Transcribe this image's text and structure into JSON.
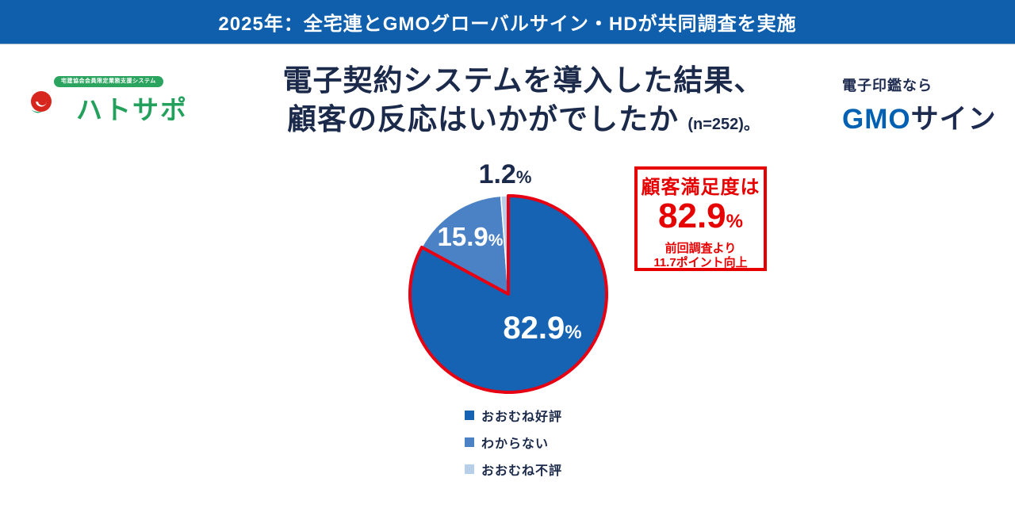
{
  "banner": {
    "text": "2025年：全宅連とGMOグローバルサイン・HDが共同調査を実施",
    "bg_color": "#0f5fad"
  },
  "logos": {
    "hatosapo": {
      "badge": "宅建協会会員限定業務支援システム",
      "name": "ハトサポ",
      "green": "#23a05c",
      "bird_red": "#d7261d"
    },
    "gmosign": {
      "tagline": "電子印鑑なら",
      "brand_blue_part": "GMO",
      "brand_navy_part": "サイン",
      "blue": "#0060b2",
      "navy": "#1e2b50"
    }
  },
  "title": {
    "line1": "電子契約システムを導入した結果、",
    "line2": "顧客の反応はいかがでしたか",
    "sample": "(n=252)。"
  },
  "percent_sign": "%",
  "chart_data": {
    "type": "pie",
    "title": "電子契約システムを導入した結果、顧客の反応はいかがでしたか",
    "sample_size": 252,
    "start_angle_deg": 0,
    "direction": "clockwise",
    "legend_position": "bottom",
    "slices": [
      {
        "label": "おおむね好評",
        "value": 82.9,
        "color": "#1563b2",
        "outline_color": "#e60012",
        "outline_width": 4
      },
      {
        "label": "わからない",
        "value": 15.9,
        "color": "#4a82c5"
      },
      {
        "label": "おおむね不評",
        "value": 1.2,
        "color": "#b8cfe9"
      }
    ]
  },
  "callout": {
    "line1": "顧客満足度は",
    "big_value": "82.9",
    "line3": "前回調査より",
    "line4": "11.7ポイント向上",
    "color": "#e60000"
  }
}
